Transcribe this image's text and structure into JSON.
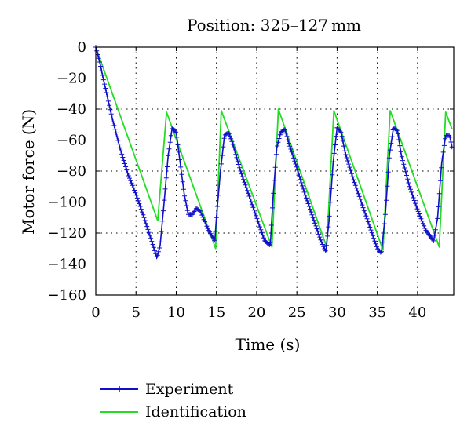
{
  "chart_data": {
    "type": "line",
    "title": "Position: 325–127 mm",
    "xlabel": "Time (s)",
    "ylabel": "Motor force (N)",
    "xlim": [
      0,
      44.5
    ],
    "ylim": [
      -160,
      0
    ],
    "xticks": [
      0,
      5,
      10,
      15,
      20,
      25,
      30,
      35,
      40
    ],
    "yticks": [
      0,
      -20,
      -40,
      -60,
      -80,
      -100,
      -120,
      -140,
      -160
    ],
    "grid": true,
    "legend_position": "bottom",
    "series": [
      {
        "name": "Experiment",
        "color": "#1010c8",
        "marker": "plus",
        "x": [
          0,
          0.5,
          1,
          2,
          3,
          4,
          5,
          6,
          7,
          7.6,
          8,
          8.5,
          9,
          9.5,
          10,
          10.5,
          11,
          11.5,
          12,
          12.5,
          13,
          14,
          14.8,
          15,
          15.5,
          16,
          16.5,
          17,
          18,
          19,
          20,
          21,
          21.7,
          22,
          22.5,
          23,
          23.5,
          24,
          25,
          26,
          27,
          28,
          28.6,
          29,
          29.5,
          30,
          30.5,
          31,
          32,
          33,
          34,
          35,
          35.5,
          36,
          36.5,
          37,
          37.5,
          38,
          39,
          40,
          41,
          42,
          42.5,
          43,
          43.5,
          44,
          44.3
        ],
        "y": [
          0,
          -10,
          -22,
          -45,
          -65,
          -82,
          -95,
          -110,
          -126,
          -136,
          -128,
          -100,
          -70,
          -52,
          -55,
          -75,
          -95,
          -108,
          -108,
          -104,
          -106,
          -118,
          -125,
          -110,
          -80,
          -57,
          -55,
          -62,
          -80,
          -95,
          -110,
          -125,
          -128,
          -100,
          -65,
          -55,
          -53,
          -62,
          -78,
          -95,
          -110,
          -125,
          -132,
          -112,
          -75,
          -52,
          -55,
          -68,
          -85,
          -100,
          -115,
          -130,
          -133,
          -108,
          -70,
          -52,
          -54,
          -70,
          -90,
          -105,
          -118,
          -125,
          -110,
          -75,
          -57,
          -57,
          -65
        ]
      },
      {
        "name": "Identification",
        "color": "#22dd22",
        "marker": "none",
        "x": [
          0,
          7.7,
          8.8,
          14.9,
          15.6,
          21.9,
          22.7,
          28.7,
          29.6,
          35.7,
          36.6,
          42.7,
          43.5,
          44.3
        ],
        "y": [
          0,
          -112,
          -42,
          -130,
          -41,
          -129,
          -40,
          -129,
          -41,
          -131,
          -41,
          -129,
          -42,
          -53
        ]
      }
    ]
  }
}
